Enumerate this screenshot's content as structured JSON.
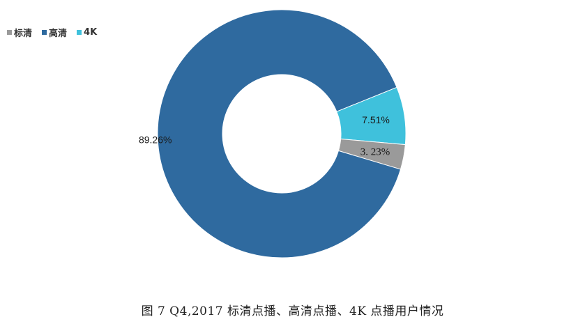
{
  "chart_data": {
    "type": "pie",
    "subtype": "donut",
    "title": "",
    "series": [
      {
        "name": "标清",
        "value": 3.23,
        "label": "3. 23%",
        "color": "#9a9a9a"
      },
      {
        "name": "高清",
        "value": 89.26,
        "label": "89.26%",
        "color": "#2f6a9f"
      },
      {
        "name": "4K",
        "value": 7.51,
        "label": "7.51%",
        "color": "#3fc1dc"
      }
    ],
    "legend_position": "top-left"
  },
  "caption": "图 7  Q4,2017 标清点播、高清点播、4K 点播用户情况"
}
